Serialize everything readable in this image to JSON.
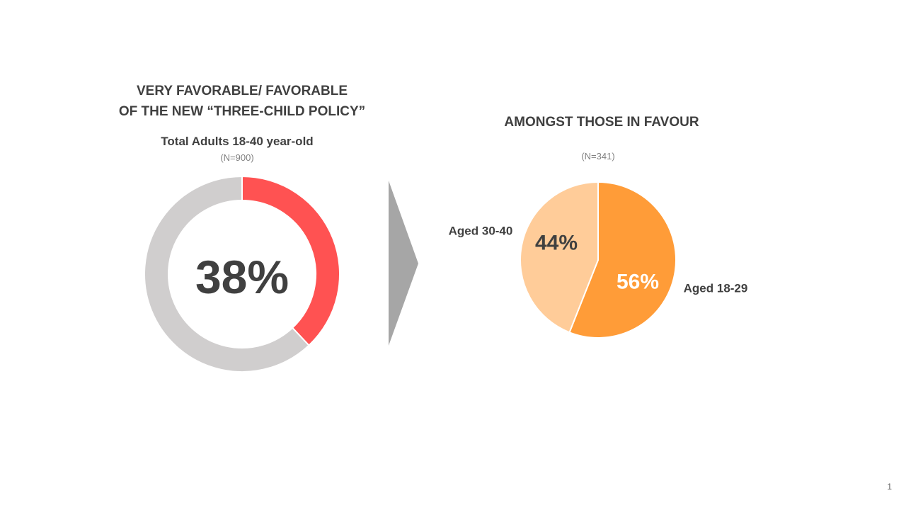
{
  "colors": {
    "favorable": "#FF5252",
    "rest": "#D0CECE",
    "aged_18_29": "#FF9C38",
    "aged_30_40": "#FFCC99",
    "arrow": "#A6A6A6",
    "text": "#404040"
  },
  "left": {
    "title_line1": "VERY FAVORABLE/ FAVORABLE",
    "title_line2": "OF THE NEW “THREE-CHILD POLICY”",
    "subtitle": "Total  Adults  18-40 year-old",
    "n_label": "(N=900)",
    "center_label": "38%"
  },
  "right": {
    "title": "AMONGST THOSE IN FAVOUR",
    "n_label": "(N=341)",
    "slice1_value_label": "56%",
    "slice1_category_label": "Aged 18-29",
    "slice2_value_label": "44%",
    "slice2_category_label": "Aged 30-40"
  },
  "page_number": "1",
  "chart_data": [
    {
      "type": "pie",
      "variant": "donut",
      "title": "VERY FAVORABLE/ FAVORABLE OF THE NEW “THREE-CHILD POLICY”",
      "subtitle": "Total  Adults  18-40 year-old",
      "sample": "(N=900)",
      "categories": [
        "",
        ""
      ],
      "values": [
        38,
        62
      ],
      "data_labels": [
        "38%",
        ""
      ],
      "unit": "%"
    },
    {
      "type": "pie",
      "title": "AMONGST THOSE IN FAVOUR",
      "sample": "(N=341)",
      "categories": [
        "Aged 18-29",
        "Aged 30-40"
      ],
      "values": [
        56,
        44
      ],
      "data_labels": [
        "56%",
        "44%"
      ],
      "unit": "%"
    }
  ]
}
